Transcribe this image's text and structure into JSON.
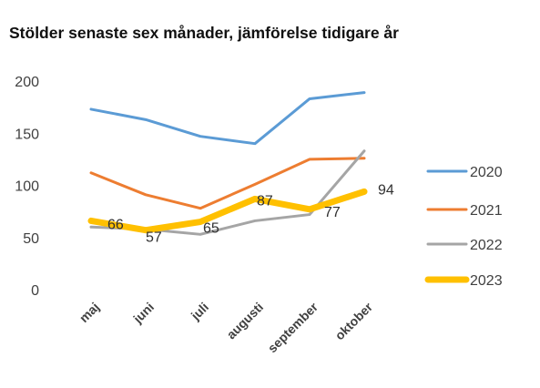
{
  "chart_data": {
    "type": "line",
    "title": "Stölder senaste sex månader, jämförelse tidigare år",
    "xlabel": "",
    "ylabel": "",
    "categories": [
      "maj",
      "juni",
      "juli",
      "augusti",
      "september",
      "oktober"
    ],
    "ylim": [
      0,
      200
    ],
    "yticks": [
      0,
      50,
      100,
      150,
      200
    ],
    "grid": false,
    "legend_position": "right",
    "series": [
      {
        "name": "2020",
        "color": "#5B9BD5",
        "values": [
          173,
          163,
          147,
          140,
          183,
          189
        ]
      },
      {
        "name": "2021",
        "color": "#ED7D31",
        "values": [
          112,
          91,
          78,
          101,
          125,
          126
        ]
      },
      {
        "name": "2022",
        "color": "#A5A5A5",
        "values": [
          60,
          58,
          53,
          66,
          72,
          133
        ]
      },
      {
        "name": "2023",
        "color": "#FFC000",
        "values": [
          66,
          57,
          65,
          87,
          77,
          94
        ],
        "data_labels": [
          "66",
          "57",
          "65",
          "87",
          "77",
          "94"
        ]
      }
    ]
  }
}
